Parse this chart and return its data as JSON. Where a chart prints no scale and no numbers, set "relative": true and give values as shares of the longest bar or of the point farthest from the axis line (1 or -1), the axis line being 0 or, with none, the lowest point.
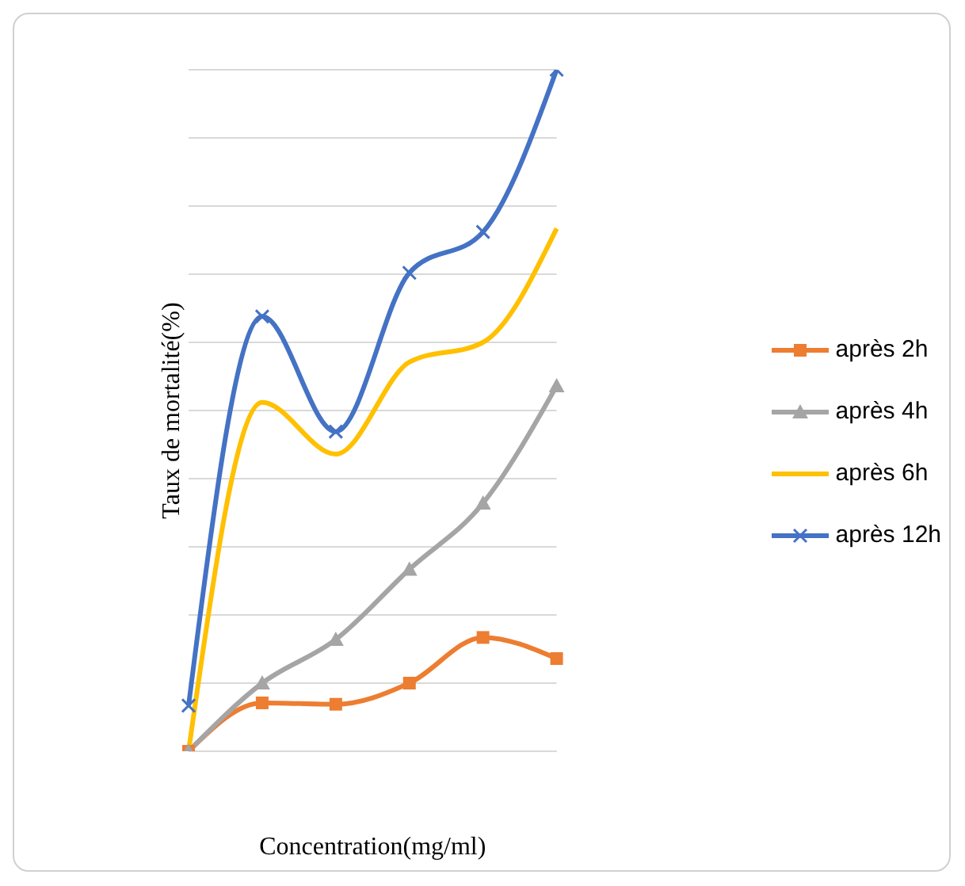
{
  "chart_data": {
    "type": "line",
    "relative": true,
    "xlabel": "Concentration(mg/ml)",
    "ylabel": "Taux de mortalité(%)",
    "categories": [
      null,
      null,
      null,
      null,
      null,
      null
    ],
    "grid": "y",
    "legend": "right",
    "series": [
      {
        "name": "après 2h",
        "color": "#ed7d31",
        "marker": "square",
        "values": [
          0,
          0.071,
          0.069,
          0.1,
          0.167,
          0.136
        ]
      },
      {
        "name": "après 4h",
        "color": "#a5a5a5",
        "marker": "triangle",
        "values": [
          0,
          0.1,
          0.164,
          0.267,
          0.364,
          0.536
        ]
      },
      {
        "name": "après 6h",
        "color": "#ffc000",
        "marker": "none",
        "values": [
          0,
          0.512,
          0.436,
          0.571,
          0.6,
          0.767
        ]
      },
      {
        "name": "après 12h",
        "color": "#4472c4",
        "marker": "cross",
        "values": [
          0.067,
          0.638,
          0.469,
          0.702,
          0.762,
          1
        ]
      }
    ]
  }
}
